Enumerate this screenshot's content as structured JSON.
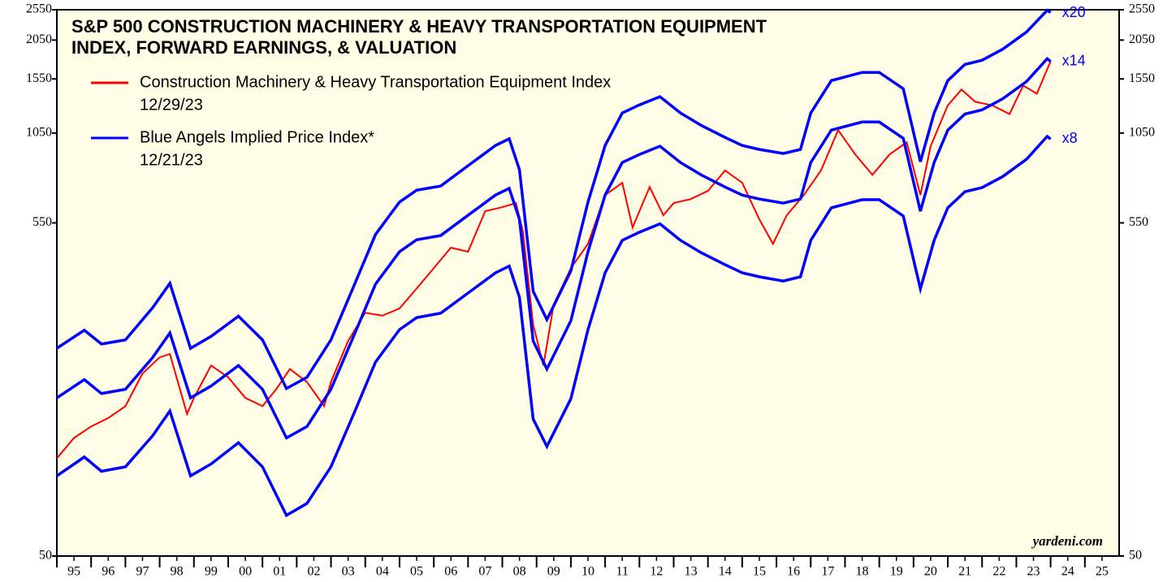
{
  "chart_data": {
    "type": "line",
    "title": "S&P 500 CONSTRUCTION MACHINERY & HEAVY TRANSPORTATION EQUIPMENT",
    "subtitle": "INDEX, FORWARD EARNINGS, & VALUATION",
    "log_scale": true,
    "background": "#fffde6",
    "ylim": [
      50,
      2550
    ],
    "yticks": [
      50,
      550,
      1050,
      1550,
      2050,
      2550
    ],
    "xlim": [
      1995,
      2026
    ],
    "xticks": [
      {
        "value": 1995.5,
        "label": "95"
      },
      {
        "value": 1996.5,
        "label": "96"
      },
      {
        "value": 1997.5,
        "label": "97"
      },
      {
        "value": 1998.5,
        "label": "98"
      },
      {
        "value": 1999.5,
        "label": "99"
      },
      {
        "value": 2000.5,
        "label": "00"
      },
      {
        "value": 2001.5,
        "label": "01"
      },
      {
        "value": 2002.5,
        "label": "02"
      },
      {
        "value": 2003.5,
        "label": "03"
      },
      {
        "value": 2004.5,
        "label": "04"
      },
      {
        "value": 2005.5,
        "label": "05"
      },
      {
        "value": 2006.5,
        "label": "06"
      },
      {
        "value": 2007.5,
        "label": "07"
      },
      {
        "value": 2008.5,
        "label": "08"
      },
      {
        "value": 2009.5,
        "label": "09"
      },
      {
        "value": 2010.5,
        "label": "10"
      },
      {
        "value": 2011.5,
        "label": "11"
      },
      {
        "value": 2012.5,
        "label": "12"
      },
      {
        "value": 2013.5,
        "label": "13"
      },
      {
        "value": 2014.5,
        "label": "14"
      },
      {
        "value": 2015.5,
        "label": "15"
      },
      {
        "value": 2016.5,
        "label": "16"
      },
      {
        "value": 2017.5,
        "label": "17"
      },
      {
        "value": 2018.5,
        "label": "18"
      },
      {
        "value": 2019.5,
        "label": "19"
      },
      {
        "value": 2020.5,
        "label": "20"
      },
      {
        "value": 2021.5,
        "label": "21"
      },
      {
        "value": 2022.5,
        "label": "22"
      },
      {
        "value": 2023.5,
        "label": "23"
      },
      {
        "value": 2024.5,
        "label": "24"
      },
      {
        "value": 2025.5,
        "label": "25"
      }
    ],
    "series": [
      {
        "name": "Construction Machinery & Heavy Transportation Equipment Index",
        "date": "12/29/23",
        "color": "#ff0000",
        "legend": true,
        "x": [
          1995.0,
          1995.5,
          1996.0,
          1996.5,
          1997.0,
          1997.5,
          1998.0,
          1998.3,
          1998.8,
          1999.0,
          1999.5,
          2000.0,
          2000.5,
          2001.0,
          2001.4,
          2001.8,
          2002.3,
          2002.8,
          2003.0,
          2003.5,
          2004.0,
          2004.5,
          2005.0,
          2005.5,
          2006.0,
          2006.5,
          2007.0,
          2007.5,
          2008.0,
          2008.4,
          2008.6,
          2008.9,
          2009.2,
          2009.5,
          2010.0,
          2010.5,
          2011.0,
          2011.5,
          2011.8,
          2012.3,
          2012.7,
          2013.0,
          2013.5,
          2014.0,
          2014.5,
          2015.0,
          2015.5,
          2015.9,
          2016.3,
          2016.8,
          2017.3,
          2017.8,
          2018.3,
          2018.8,
          2019.3,
          2019.8,
          2020.2,
          2020.5,
          2021.0,
          2021.4,
          2021.8,
          2022.3,
          2022.8,
          2023.2,
          2023.6,
          2023.9,
          2024.0
        ],
        "values": [
          101,
          117,
          127,
          135,
          147,
          186,
          209,
          214,
          139,
          156,
          197,
          181,
          156,
          147,
          166,
          192,
          175,
          147,
          175,
          235,
          288,
          282,
          297,
          343,
          397,
          460,
          447,
          598,
          616,
          634,
          517,
          264,
          197,
          306,
          397,
          473,
          672,
          734,
          532,
          712,
          581,
          634,
          653,
          692,
          802,
          734,
          564,
          473,
          581,
          672,
          802,
          1072,
          900,
          777,
          900,
          982,
          672,
          955,
          1281,
          1436,
          1315,
          1281,
          1204,
          1478,
          1394,
          1661,
          1758
        ]
      },
      {
        "name": "Blue Angels Implied Price Index*",
        "date": "12/21/23",
        "label": "x20",
        "color": "#0000ff",
        "legend": true,
        "x": [
          1995.0,
          1995.8,
          1996.3,
          1997.0,
          1997.8,
          1998.3,
          1998.9,
          1999.5,
          2000.3,
          2001.0,
          2001.7,
          2002.3,
          2003.0,
          2003.7,
          2004.3,
          2005.0,
          2005.5,
          2006.2,
          2007.0,
          2007.8,
          2008.2,
          2008.5,
          2008.9,
          2009.3,
          2010.0,
          2010.5,
          2011.0,
          2011.5,
          2012.0,
          2012.6,
          2013.2,
          2013.8,
          2014.5,
          2015.0,
          2015.5,
          2016.2,
          2016.7,
          2017.0,
          2017.6,
          2018.5,
          2019.0,
          2019.7,
          2020.2,
          2020.6,
          2021.0,
          2021.5,
          2022.0,
          2022.6,
          2023.3,
          2023.9,
          2024.0
        ],
        "values": [
          223,
          254,
          230,
          237,
          299,
          356,
          223,
          243,
          281,
          237,
          167,
          181,
          237,
          356,
          506,
          639,
          696,
          717,
          830,
          960,
          1007,
          806,
          336,
          274,
          389,
          639,
          960,
          1213,
          1286,
          1364,
          1213,
          1110,
          1017,
          960,
          933,
          906,
          933,
          1213,
          1531,
          1624,
          1624,
          1444,
          854,
          1213,
          1531,
          1720,
          1773,
          1919,
          2174,
          2540,
          2500
        ]
      },
      {
        "name": "x14",
        "label": "x14",
        "color": "#0000ff",
        "legend": false,
        "x": [
          1995.0,
          1995.8,
          1996.3,
          1997.0,
          1997.8,
          1998.3,
          1998.9,
          1999.5,
          2000.3,
          2001.0,
          2001.7,
          2002.3,
          2003.0,
          2003.7,
          2004.3,
          2005.0,
          2005.5,
          2006.2,
          2007.0,
          2007.8,
          2008.2,
          2008.5,
          2008.9,
          2009.3,
          2010.0,
          2010.5,
          2011.0,
          2011.5,
          2012.0,
          2012.6,
          2013.2,
          2013.8,
          2014.5,
          2015.0,
          2015.5,
          2016.2,
          2016.7,
          2017.0,
          2017.6,
          2018.5,
          2019.0,
          2019.7,
          2020.2,
          2020.6,
          2021.0,
          2021.5,
          2022.0,
          2022.6,
          2023.3,
          2023.9,
          2024.0
        ],
        "values": [
          156,
          178,
          161,
          166,
          209,
          249,
          156,
          170,
          197,
          166,
          117,
          127,
          166,
          249,
          354,
          447,
          487,
          502,
          581,
          672,
          705,
          564,
          235,
          192,
          272,
          447,
          672,
          849,
          900,
          955,
          849,
          777,
          712,
          672,
          653,
          634,
          653,
          849,
          1072,
          1137,
          1137,
          1011,
          598,
          849,
          1072,
          1204,
          1241,
          1343,
          1522,
          1793,
          1758
        ]
      },
      {
        "name": "x8",
        "label": "x8",
        "color": "#0000ff",
        "legend": false,
        "x": [
          1995.0,
          1995.8,
          1996.3,
          1997.0,
          1997.8,
          1998.3,
          1998.9,
          1999.5,
          2000.3,
          2001.0,
          2001.7,
          2002.3,
          2003.0,
          2003.7,
          2004.3,
          2005.0,
          2005.5,
          2006.2,
          2007.0,
          2007.8,
          2008.2,
          2008.5,
          2008.9,
          2009.3,
          2010.0,
          2010.5,
          2011.0,
          2011.5,
          2012.0,
          2012.6,
          2013.2,
          2013.8,
          2014.5,
          2015.0,
          2015.5,
          2016.2,
          2016.7,
          2017.0,
          2017.6,
          2018.5,
          2019.0,
          2019.7,
          2020.2,
          2020.6,
          2021.0,
          2021.5,
          2022.0,
          2022.6,
          2023.3,
          2023.9,
          2024.0
        ],
        "values": [
          89,
          102,
          92,
          95,
          119,
          142,
          89,
          97,
          113,
          95,
          67,
          73,
          95,
          142,
          202,
          255,
          278,
          287,
          332,
          384,
          403,
          322,
          134,
          110,
          155,
          255,
          384,
          485,
          514,
          546,
          485,
          444,
          407,
          384,
          373,
          362,
          373,
          485,
          613,
          650,
          650,
          578,
          342,
          485,
          613,
          688,
          709,
          767,
          870,
          1025,
          1005
        ]
      }
    ],
    "source": "yardeni.com"
  }
}
